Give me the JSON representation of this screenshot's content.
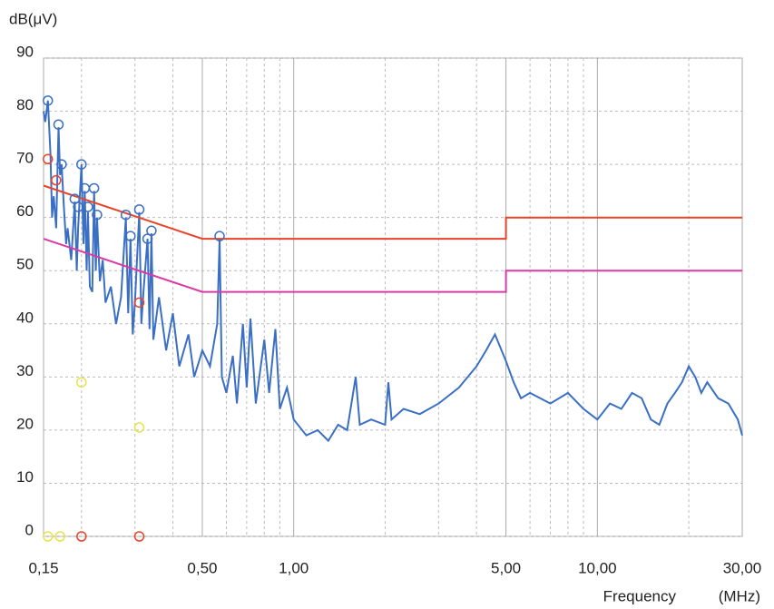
{
  "chart_data": {
    "type": "line",
    "y_label": "dB(μV)",
    "x_label": "Frequency",
    "x_unit": "(MHz)",
    "xlog": true,
    "grid": true,
    "xlim": [
      0.15,
      30
    ],
    "ylim": [
      0,
      90
    ],
    "xticks": [
      {
        "value": 0.15,
        "label": "0,15"
      },
      {
        "value": 0.5,
        "label": "0,50"
      },
      {
        "value": 1,
        "label": "1,00"
      },
      {
        "value": 5,
        "label": "5,00"
      },
      {
        "value": 10,
        "label": "10,00"
      },
      {
        "value": 30,
        "label": "30,00"
      }
    ],
    "xminor_ticks": [
      0.2,
      0.3,
      0.4,
      0.6,
      0.7,
      0.8,
      0.9,
      2,
      3,
      4,
      6,
      7,
      8,
      9,
      20
    ],
    "yticks": [
      0,
      10,
      20,
      30,
      40,
      50,
      60,
      70,
      80,
      90
    ],
    "series": [
      {
        "style": "line",
        "color": "#3a6fc4",
        "x": [
          0.15,
          0.152,
          0.155,
          0.158,
          0.16,
          0.162,
          0.165,
          0.168,
          0.17,
          0.172,
          0.175,
          0.178,
          0.18,
          0.185,
          0.19,
          0.193,
          0.195,
          0.2,
          0.203,
          0.205,
          0.208,
          0.21,
          0.213,
          0.217,
          0.22,
          0.223,
          0.225,
          0.23,
          0.235,
          0.24,
          0.25,
          0.26,
          0.27,
          0.28,
          0.285,
          0.29,
          0.295,
          0.3,
          0.31,
          0.315,
          0.32,
          0.33,
          0.335,
          0.34,
          0.345,
          0.36,
          0.38,
          0.4,
          0.42,
          0.45,
          0.47,
          0.5,
          0.53,
          0.56,
          0.57,
          0.58,
          0.6,
          0.63,
          0.65,
          0.68,
          0.7,
          0.72,
          0.75,
          0.8,
          0.83,
          0.87,
          0.9,
          0.95,
          1.0,
          1.1,
          1.2,
          1.3,
          1.4,
          1.5,
          1.6,
          1.65,
          1.8,
          2.0,
          2.05,
          2.1,
          2.3,
          2.6,
          3.0,
          3.5,
          4.0,
          4.3,
          4.6,
          5.0,
          5.3,
          5.6,
          6.0,
          7,
          8,
          9,
          10,
          11,
          12,
          13,
          14,
          15,
          16,
          17,
          18,
          19,
          20,
          21,
          22,
          23,
          25,
          27,
          29,
          30
        ],
        "values": [
          80,
          78,
          82,
          72,
          60,
          64,
          58,
          77,
          68,
          70,
          62,
          55,
          58,
          52,
          63,
          50,
          58,
          70,
          55,
          65,
          50,
          61,
          47,
          46,
          65,
          50,
          60,
          48,
          52,
          44,
          47,
          40,
          45,
          60,
          42,
          56,
          38,
          44,
          61,
          40,
          46,
          56,
          39,
          57,
          37,
          45,
          35,
          42,
          32,
          38,
          30,
          35,
          32,
          40,
          56,
          30,
          27,
          34,
          25,
          40,
          28,
          41,
          25,
          37,
          27,
          39,
          24,
          28,
          22,
          19,
          20,
          18,
          21,
          20,
          30,
          21,
          22,
          21,
          29,
          22,
          24,
          23,
          25,
          28,
          32,
          35,
          38,
          33,
          29,
          26,
          27,
          25,
          27,
          24,
          22,
          25,
          24,
          27,
          26,
          22,
          21,
          25,
          27,
          29,
          32,
          30,
          27,
          29,
          26,
          25,
          22,
          19
        ]
      },
      {
        "style": "line",
        "color": "#e8442a",
        "x": [
          0.15,
          0.5,
          5,
          5,
          30
        ],
        "values": [
          66,
          56,
          56,
          60,
          60
        ]
      },
      {
        "style": "line",
        "color": "#d93aa6",
        "x": [
          0.15,
          0.5,
          5,
          5,
          30
        ],
        "values": [
          56,
          46,
          46,
          50,
          50
        ]
      },
      {
        "style": "circle",
        "color": "#3a6fc4",
        "x": [
          0.155,
          0.168,
          0.172,
          0.19,
          0.195,
          0.2,
          0.205,
          0.21,
          0.22,
          0.225,
          0.28,
          0.29,
          0.31,
          0.33,
          0.34,
          0.57
        ],
        "values": [
          82,
          77.5,
          70,
          63.5,
          62,
          70,
          65.5,
          62,
          65.5,
          60.5,
          60.5,
          56.5,
          61.5,
          56,
          57.5,
          56.5
        ]
      },
      {
        "style": "circle",
        "color": "#e8442a",
        "x": [
          0.155,
          0.165,
          0.31,
          0.2,
          0.31
        ],
        "values": [
          71,
          67,
          44,
          0,
          0
        ]
      },
      {
        "style": "circle",
        "color": "#e8e24a",
        "x": [
          0.2,
          0.31,
          0.155,
          0.17
        ],
        "values": [
          29,
          20.5,
          0,
          0
        ]
      }
    ]
  }
}
